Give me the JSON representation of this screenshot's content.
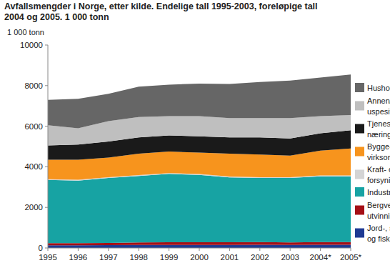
{
  "chart_data": {
    "type": "area",
    "stacked": true,
    "grid": false,
    "title": "Avfallsmengder i Norge, etter kilde. Endelige tall 1995-2003, foreløpige tall\n2004 og 2005. 1 000 tonn",
    "y_label": "1 000 tonn",
    "categories": [
      "1995",
      "1996",
      "1997",
      "1998",
      "1999",
      "2000",
      "2001",
      "2002",
      "2003",
      "2004*",
      "2005*"
    ],
    "ylim": [
      0,
      10000
    ],
    "yticks": [
      0,
      2000,
      4000,
      6000,
      8000,
      10000
    ],
    "series": [
      {
        "name": "Jord-, skogbruk\nog fiske",
        "color": "#1f3a93",
        "values": [
          130,
          130,
          140,
          150,
          150,
          150,
          150,
          160,
          150,
          160,
          160
        ]
      },
      {
        "name": "Bergverk og\nutvinning",
        "color": "#a50f15",
        "values": [
          110,
          110,
          110,
          120,
          130,
          130,
          130,
          130,
          120,
          130,
          130
        ]
      },
      {
        "name": "Industri",
        "color": "#17a3a3",
        "values": [
          3110,
          3080,
          3200,
          3280,
          3370,
          3320,
          3200,
          3160,
          3180,
          3240,
          3240
        ]
      },
      {
        "name": "Kraft- og vann-\nforsyning",
        "color": "#d4d4d4",
        "values": [
          40,
          40,
          40,
          40,
          40,
          40,
          40,
          40,
          40,
          40,
          40
        ]
      },
      {
        "name": "Bygge- og anleggs-\nvirksomhet",
        "color": "#f7941d",
        "values": [
          960,
          990,
          960,
          1060,
          1060,
          1060,
          1130,
          1110,
          1060,
          1230,
          1330
        ]
      },
      {
        "name": "Tjenesteytende\nnæringer",
        "color": "#1a1a1a",
        "values": [
          700,
          750,
          800,
          800,
          800,
          800,
          800,
          850,
          850,
          850,
          900
        ]
      },
      {
        "name": "Annen/\nuspesifisert kilde",
        "color": "#bfbfbf",
        "values": [
          1000,
          800,
          1000,
          1000,
          950,
          1000,
          950,
          950,
          1000,
          850,
          750
        ]
      },
      {
        "name": "Husholdninger",
        "color": "#666666",
        "values": [
          1250,
          1450,
          1350,
          1500,
          1550,
          1600,
          1680,
          1780,
          1850,
          1900,
          2000
        ]
      }
    ]
  }
}
